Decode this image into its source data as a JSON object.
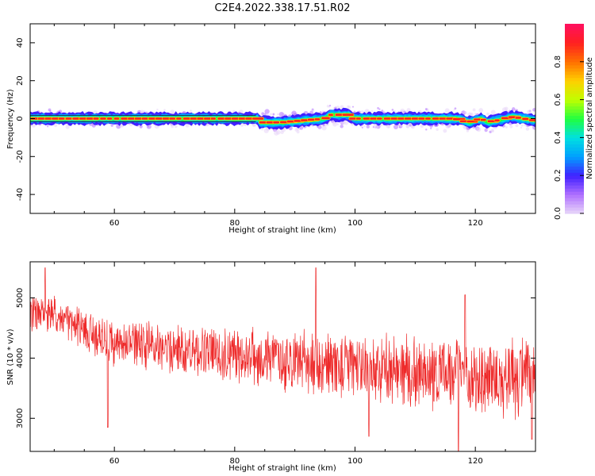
{
  "title": "C2E4.2022.338.17.51.R02",
  "colors": {
    "snr_line": "#ee2a2a",
    "colormap": [
      "#e8d6f8",
      "#b070ff",
      "#4020ff",
      "#00a0ff",
      "#00e0e0",
      "#20ff40",
      "#c0ff00",
      "#ffd000",
      "#ff7000",
      "#ff2020",
      "#ff1060"
    ]
  },
  "chart_data": [
    {
      "type": "heatmap",
      "xlabel": "Height of straight line (km)",
      "ylabel": "Frequency (Hz)",
      "xlim": [
        46,
        130
      ],
      "ylim": [
        -50,
        50
      ],
      "xticks": [
        60,
        80,
        100,
        120
      ],
      "yticks": [
        40,
        20,
        0,
        -20,
        -40
      ],
      "xtick_labels": [
        "60",
        "80",
        "100",
        "120"
      ],
      "ytick_labels": [
        "40",
        "20",
        "0",
        "-20",
        "-40"
      ],
      "band_center": [
        {
          "x": 46,
          "y": 0
        },
        {
          "x": 84,
          "y": 0
        },
        {
          "x": 84,
          "y": -2
        },
        {
          "x": 88,
          "y": -2
        },
        {
          "x": 95,
          "y": 0
        },
        {
          "x": 96,
          "y": 2
        },
        {
          "x": 99,
          "y": 2
        },
        {
          "x": 100,
          "y": 0
        },
        {
          "x": 117,
          "y": 0
        },
        {
          "x": 119,
          "y": -2
        },
        {
          "x": 121,
          "y": 0
        },
        {
          "x": 122,
          "y": -2
        },
        {
          "x": 125,
          "y": 0
        },
        {
          "x": 126,
          "y": 1
        },
        {
          "x": 128,
          "y": 0
        },
        {
          "x": 130,
          "y": -1
        }
      ],
      "colorbar": {
        "label": "Normalized spectral amplitude",
        "range": [
          0,
          1
        ],
        "ticks": [
          "0.0",
          "0.2",
          "0.4",
          "0.6",
          "0.8"
        ]
      }
    },
    {
      "type": "line",
      "xlabel": "Height of straight line (km)",
      "ylabel": "SNR (10 * v/v)",
      "xlim": [
        46,
        130
      ],
      "ylim": [
        2450,
        5600
      ],
      "xticks": [
        60,
        80,
        100,
        120
      ],
      "yticks": [
        3000,
        4000,
        5000
      ],
      "xtick_labels": [
        "60",
        "80",
        "100",
        "120"
      ],
      "ytick_labels": [
        "3000",
        "4000",
        "5000"
      ],
      "series": [
        {
          "trend": [
            {
              "x": 46,
              "y": 4750
            },
            {
              "x": 50,
              "y": 4700
            },
            {
              "x": 55,
              "y": 4450
            },
            {
              "x": 60,
              "y": 4250
            },
            {
              "x": 70,
              "y": 4150
            },
            {
              "x": 80,
              "y": 4050
            },
            {
              "x": 90,
              "y": 3950
            },
            {
              "x": 100,
              "y": 3850
            },
            {
              "x": 110,
              "y": 3780
            },
            {
              "x": 120,
              "y": 3700
            },
            {
              "x": 130,
              "y": 3650
            }
          ],
          "peaks": [
            {
              "x": 48.5,
              "y": 5500
            },
            {
              "x": 93.5,
              "y": 5500
            },
            {
              "x": 118.3,
              "y": 5050
            }
          ],
          "troughs": [
            {
              "x": 58.9,
              "y": 2850
            },
            {
              "x": 102.3,
              "y": 2700
            },
            {
              "x": 117.2,
              "y": 2450
            },
            {
              "x": 129.4,
              "y": 2650
            }
          ]
        }
      ]
    }
  ]
}
